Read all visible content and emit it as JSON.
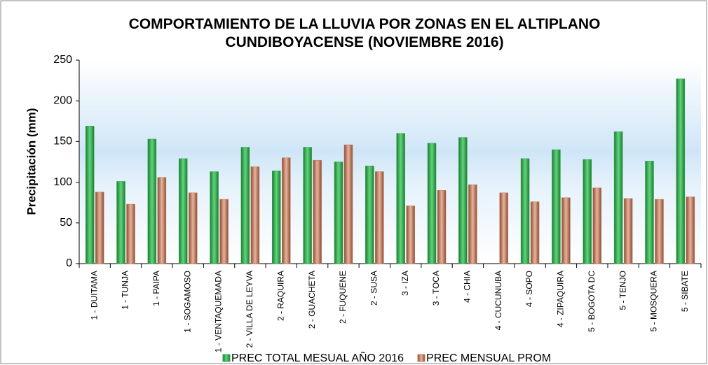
{
  "chart_data": {
    "type": "bar",
    "title": "COMPORTAMIENTO DE LA LLUVIA POR ZONAS EN EL ALTIPLANO CUNDIBOYACENSE (NOVIEMBRE 2016)",
    "y_label": "Precipitación  (mm)",
    "categories": [
      "1 - DUITAMA",
      "1 - TUNJA",
      "1 - PAIPA",
      "1 - SOGAMOSO",
      "1 - VENTAQUEMADA",
      "2 - VILLA DE LEYVA",
      "2 - RAQUIRA",
      "2 - GUACHETA",
      "2 - FUQUENE",
      "2 - SUSA",
      "3 - IZA",
      "3 - TOCA",
      "4 - CHIA",
      "4 - CUCUNUBA",
      "4 - SOPO",
      "4 - ZIPAQUIRA",
      "5 - BOGOTA DC",
      "5 - TENJO",
      "5 - MOSQUERA",
      "5 - SIBATE"
    ],
    "series": [
      {
        "name": "PREC TOTAL MESUAL AÑO 2016",
        "color": "#2eaa4a",
        "values": [
          169,
          101,
          153,
          129,
          113,
          143,
          114,
          143,
          125,
          120,
          160,
          148,
          155,
          null,
          129,
          140,
          128,
          162,
          126,
          227
        ]
      },
      {
        "name": "PREC MENSUAL PROM",
        "color": "#c07a5c",
        "values": [
          88,
          73,
          106,
          87,
          79,
          119,
          130,
          127,
          146,
          113,
          71,
          90,
          97,
          87,
          76,
          81,
          93,
          80,
          79,
          82
        ]
      }
    ],
    "ylim": [
      0,
      250
    ],
    "yticks": [
      0,
      50,
      100,
      150,
      200,
      250
    ],
    "legend": "bottom"
  }
}
